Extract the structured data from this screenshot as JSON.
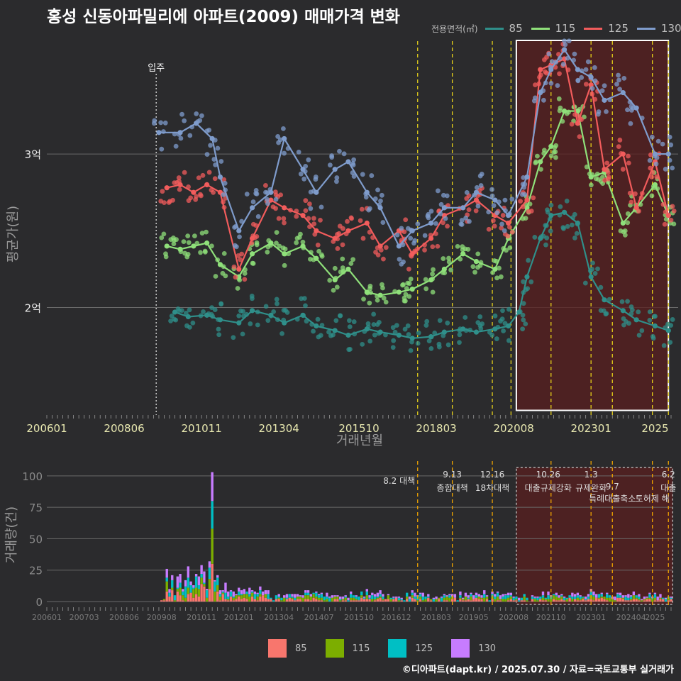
{
  "title": "홍성 신동아파밀리에 아파트(2009) 매매가격 변화",
  "credit": "©디아파트(dapt.kr) / 2025.07.30 / 자료=국토교통부 실거래가",
  "colors": {
    "background": "#2b2b2d",
    "s85": "#2f8f8a",
    "s115": "#8fe07a",
    "s125": "#f25c5c",
    "s130": "#7f9ccc",
    "bar85": "#f8766d",
    "bar115": "#7cae00",
    "bar125": "#00bfc4",
    "bar130": "#c77cff",
    "policy": "#e6d11a",
    "highlight": "#5a1f1f"
  },
  "chart_data": [
    {
      "type": "line",
      "panel": "price",
      "xlabel": "거래년월",
      "ylabel": "평균가(원)",
      "x_ticks": [
        "200601",
        "200806",
        "201011",
        "201304",
        "201510",
        "201803",
        "202008",
        "202301",
        "2025"
      ],
      "y_ticks": [
        {
          "value": 2.0,
          "label": "2억"
        },
        {
          "value": 3.0,
          "label": "3억"
        }
      ],
      "ylim": [
        1.3,
        3.8
      ],
      "xlim": [
        "2006-01",
        "2025-07"
      ],
      "grid": true,
      "legend": {
        "title": "전용면적(㎡)",
        "position": "top-right",
        "entries": [
          "85",
          "115",
          "125",
          "130"
        ]
      },
      "annotation": {
        "x": "2009-06",
        "label": "입주"
      },
      "policy_lines": [
        "2017-08",
        "2018-09",
        "2019-12",
        "2020-07",
        "2021-10",
        "2023-01",
        "2023-09",
        "2024-12",
        "2025-06"
      ],
      "highlight": {
        "x_from": "2020-09",
        "x_to": "2025-06",
        "y_from": 1.33,
        "y_to": 3.74
      },
      "series": [
        {
          "name": "85",
          "points": [
            [
              "2010-01",
              1.97
            ],
            [
              "2010-06",
              1.94
            ],
            [
              "2011-01",
              1.95
            ],
            [
              "2011-06",
              1.92
            ],
            [
              "2012-01",
              1.9
            ],
            [
              "2012-06",
              1.98
            ],
            [
              "2013-01",
              1.95
            ],
            [
              "2013-06",
              1.9
            ],
            [
              "2014-01",
              1.95
            ],
            [
              "2014-06",
              1.88
            ],
            [
              "2015-01",
              1.85
            ],
            [
              "2015-06",
              1.82
            ],
            [
              "2016-01",
              1.86
            ],
            [
              "2016-06",
              1.84
            ],
            [
              "2017-01",
              1.82
            ],
            [
              "2017-06",
              1.8
            ],
            [
              "2018-01",
              1.81
            ],
            [
              "2018-06",
              1.84
            ],
            [
              "2019-01",
              1.86
            ],
            [
              "2019-06",
              1.84
            ],
            [
              "2020-01",
              1.86
            ],
            [
              "2020-06",
              1.88
            ],
            [
              "2020-10",
              1.97
            ],
            [
              "2021-01",
              2.2
            ],
            [
              "2021-06",
              2.45
            ],
            [
              "2021-10",
              2.6
            ],
            [
              "2022-03",
              2.62
            ],
            [
              "2022-08",
              2.55
            ],
            [
              "2023-01",
              2.2
            ],
            [
              "2023-06",
              2.05
            ],
            [
              "2024-01",
              1.98
            ],
            [
              "2024-06",
              1.92
            ],
            [
              "2025-01",
              1.88
            ],
            [
              "2025-06",
              1.85
            ]
          ]
        },
        {
          "name": "115",
          "points": [
            [
              "2009-10",
              2.4
            ],
            [
              "2010-03",
              2.38
            ],
            [
              "2010-08",
              2.4
            ],
            [
              "2011-01",
              2.42
            ],
            [
              "2011-06",
              2.28
            ],
            [
              "2012-01",
              2.2
            ],
            [
              "2012-06",
              2.35
            ],
            [
              "2013-01",
              2.42
            ],
            [
              "2013-06",
              2.35
            ],
            [
              "2014-01",
              2.4
            ],
            [
              "2014-06",
              2.32
            ],
            [
              "2015-01",
              2.18
            ],
            [
              "2015-06",
              2.25
            ],
            [
              "2016-01",
              2.1
            ],
            [
              "2016-06",
              2.08
            ],
            [
              "2017-01",
              2.1
            ],
            [
              "2017-06",
              2.12
            ],
            [
              "2018-01",
              2.18
            ],
            [
              "2018-06",
              2.25
            ],
            [
              "2019-01",
              2.35
            ],
            [
              "2019-06",
              2.3
            ],
            [
              "2020-01",
              2.25
            ],
            [
              "2020-06",
              2.45
            ],
            [
              "2021-01",
              2.65
            ],
            [
              "2021-06",
              2.95
            ],
            [
              "2021-10",
              3.05
            ],
            [
              "2022-03",
              3.28
            ],
            [
              "2022-08",
              3.28
            ],
            [
              "2023-01",
              2.85
            ],
            [
              "2023-06",
              2.88
            ],
            [
              "2024-01",
              2.55
            ],
            [
              "2024-06",
              2.65
            ],
            [
              "2025-01",
              2.8
            ],
            [
              "2025-06",
              2.6
            ]
          ]
        },
        {
          "name": "125",
          "points": [
            [
              "2009-10",
              2.78
            ],
            [
              "2010-03",
              2.8
            ],
            [
              "2010-08",
              2.75
            ],
            [
              "2011-01",
              2.8
            ],
            [
              "2011-06",
              2.75
            ],
            [
              "2012-01",
              2.25
            ],
            [
              "2012-06",
              2.45
            ],
            [
              "2013-01",
              2.7
            ],
            [
              "2013-06",
              2.65
            ],
            [
              "2014-01",
              2.6
            ],
            [
              "2014-06",
              2.5
            ],
            [
              "2015-01",
              2.45
            ],
            [
              "2015-06",
              2.5
            ],
            [
              "2016-01",
              2.55
            ],
            [
              "2016-06",
              2.4
            ],
            [
              "2017-01",
              2.5
            ],
            [
              "2017-06",
              2.35
            ],
            [
              "2018-01",
              2.45
            ],
            [
              "2018-06",
              2.6
            ],
            [
              "2019-01",
              2.65
            ],
            [
              "2019-06",
              2.7
            ],
            [
              "2020-01",
              2.6
            ],
            [
              "2020-06",
              2.55
            ],
            [
              "2021-01",
              2.7
            ],
            [
              "2021-06",
              3.55
            ],
            [
              "2021-10",
              3.58
            ],
            [
              "2022-03",
              3.62
            ],
            [
              "2022-08",
              3.2
            ],
            [
              "2023-01",
              3.45
            ],
            [
              "2023-06",
              2.9
            ],
            [
              "2024-01",
              3.0
            ],
            [
              "2024-06",
              2.65
            ],
            [
              "2025-01",
              2.95
            ],
            [
              "2025-06",
              2.6
            ]
          ]
        },
        {
          "name": "130",
          "points": [
            [
              "2009-07",
              3.14
            ],
            [
              "2010-03",
              3.14
            ],
            [
              "2010-09",
              3.2
            ],
            [
              "2011-03",
              3.1
            ],
            [
              "2011-06",
              2.85
            ],
            [
              "2012-01",
              2.5
            ],
            [
              "2012-06",
              2.65
            ],
            [
              "2013-01",
              2.75
            ],
            [
              "2013-06",
              3.1
            ],
            [
              "2014-01",
              2.9
            ],
            [
              "2014-06",
              2.75
            ],
            [
              "2015-01",
              2.9
            ],
            [
              "2015-06",
              2.95
            ],
            [
              "2016-01",
              2.75
            ],
            [
              "2016-06",
              2.65
            ],
            [
              "2017-01",
              2.4
            ],
            [
              "2017-06",
              2.5
            ],
            [
              "2018-01",
              2.55
            ],
            [
              "2018-06",
              2.65
            ],
            [
              "2019-01",
              2.65
            ],
            [
              "2019-06",
              2.75
            ],
            [
              "2020-01",
              2.7
            ],
            [
              "2020-06",
              2.6
            ],
            [
              "2021-01",
              2.85
            ],
            [
              "2021-06",
              3.4
            ],
            [
              "2021-10",
              3.55
            ],
            [
              "2022-03",
              3.68
            ],
            [
              "2022-08",
              3.55
            ],
            [
              "2023-01",
              3.5
            ],
            [
              "2023-06",
              3.35
            ],
            [
              "2024-01",
              3.4
            ],
            [
              "2024-06",
              3.3
            ],
            [
              "2025-01",
              3.0
            ],
            [
              "2025-06",
              3.0
            ]
          ]
        }
      ]
    },
    {
      "type": "bar",
      "panel": "volume",
      "stacked": true,
      "ylabel": "거래량(건)",
      "y_ticks": [
        0,
        25,
        50,
        75,
        100
      ],
      "ylim": [
        0,
        105
      ],
      "x_ticks": [
        "200601",
        "200703",
        "200806",
        "200908",
        "201011",
        "201201",
        "201304",
        "201407",
        "201510",
        "201612",
        "201803",
        "201905",
        "202008",
        "202110",
        "202301",
        "202404",
        "2025"
      ],
      "legend": {
        "position": "bottom",
        "entries": [
          "85",
          "115",
          "125",
          "130"
        ]
      },
      "peak": {
        "month": "2011-03",
        "values": {
          "85": 30,
          "115": 28,
          "125": 22,
          "130": 23
        }
      },
      "policy_events": [
        {
          "date": "2017-08",
          "line1": "8.2 대책",
          "line2": ""
        },
        {
          "date": "2018-09",
          "line1": "9.13",
          "line2": "종합대책"
        },
        {
          "date": "2019-12",
          "line1": "12.16",
          "line2": "18차대책"
        },
        {
          "date": "2021-10",
          "line1": "10.26",
          "line2": "대출규제강화"
        },
        {
          "date": "2023-01",
          "line1": "1.3",
          "line2": "규제완화"
        },
        {
          "date": "2023-09",
          "line1": "9.7",
          "line2": "특례대출축소"
        },
        {
          "date": "2024-12",
          "line1": "",
          "line2": "토허제 해"
        },
        {
          "date": "2025-06",
          "line1": "6.2",
          "line2": "대출"
        }
      ]
    }
  ]
}
